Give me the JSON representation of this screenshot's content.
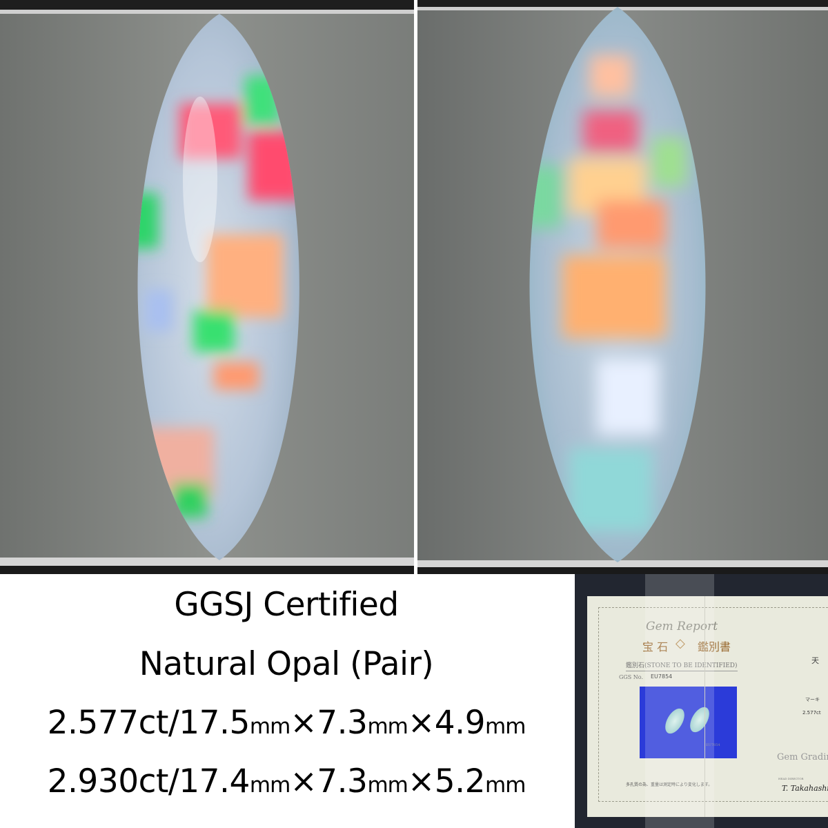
{
  "photos": [
    {
      "subject": "marquise opal cabochon",
      "background": "#8a8d8a"
    },
    {
      "subject": "marquise opal cabochon",
      "background": "#7d807e"
    }
  ],
  "caption": {
    "line1": "GGSJ Certified",
    "line2": "Natural Opal (Pair)",
    "stone1": {
      "weight": "2.577ct/17.5",
      "u1": "mm",
      "x1": "×7.3",
      "u2": "mm",
      "x2": "×4.9",
      "u3": "mm"
    },
    "stone2": {
      "weight": "2.930ct/17.4",
      "u1": "mm",
      "x1": "×7.3",
      "u2": "mm",
      "x2": "×5.2",
      "u3": "mm"
    }
  },
  "certificate": {
    "script_title": "Gem Report",
    "title_left": "宝 石",
    "title_right": "鑑別書",
    "stone_label": "鑑別石(STONE TO BE IDENTIFIED)",
    "ggs_label": "GGS No.",
    "ggs_number": "EU7854",
    "photo_label": "EU7854",
    "note": "多孔質の為、重量は測定時により変化します。",
    "right_heading": "天",
    "cut_value": "マーキ",
    "weight_value": "2.577ct",
    "lab_name": "Gem Gradin",
    "head_director": "HEAD DIRECTOR",
    "signature": "T. Takahashi"
  }
}
